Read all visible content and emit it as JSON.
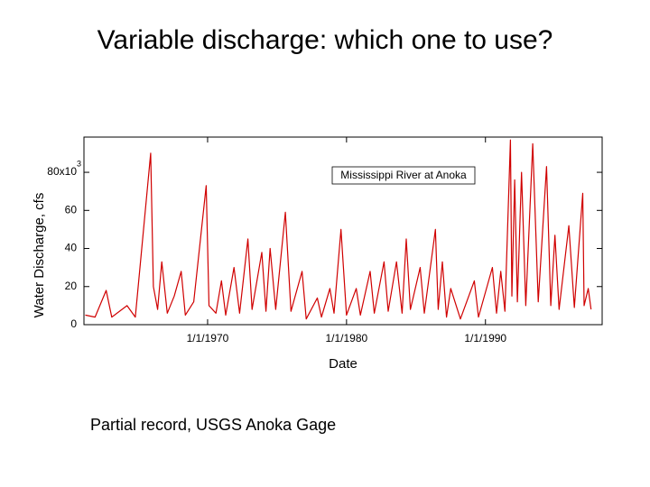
{
  "chart_data": {
    "type": "line",
    "title": "Variable discharge: which one to use?",
    "caption": "Partial record, USGS Anoka Gage",
    "annotation": "Mississippi River at Anoka",
    "xlabel": "Date",
    "ylabel": "Water Discharge, cfs",
    "ytick_exponent": "3",
    "color": "#d00000",
    "xlim": [
      1961.1,
      1998.4
    ],
    "ylim": [
      0,
      98.5
    ],
    "xticks": [
      {
        "value": 1970,
        "label": "1/1/1970"
      },
      {
        "value": 1980,
        "label": "1/1/1980"
      },
      {
        "value": 1990,
        "label": "1/1/1990"
      }
    ],
    "yticks": [
      0,
      20,
      40,
      60,
      {
        "value": 80,
        "label": "80x10"
      }
    ],
    "x": [
      1961.2,
      1961.9,
      1962.7,
      1963.1,
      1964.2,
      1964.8,
      1965.9,
      1966.1,
      1966.4,
      1966.7,
      1967.1,
      1967.6,
      1968.1,
      1968.4,
      1969.0,
      1969.9,
      1970.1,
      1970.6,
      1971.0,
      1971.3,
      1971.9,
      1972.3,
      1972.9,
      1973.2,
      1973.9,
      1974.2,
      1974.5,
      1974.9,
      1975.6,
      1976.0,
      1976.8,
      1977.1,
      1977.9,
      1978.2,
      1978.8,
      1979.1,
      1979.6,
      1980.0,
      1980.7,
      1981.0,
      1981.7,
      1982.0,
      1982.7,
      1983.0,
      1983.6,
      1984.0,
      1984.3,
      1984.6,
      1985.3,
      1985.6,
      1986.4,
      1986.6,
      1986.9,
      1987.2,
      1987.5,
      1988.2,
      1989.2,
      1989.5,
      1990.5,
      1990.8,
      1991.1,
      1991.4,
      1991.8,
      1991.9,
      1992.1,
      1992.3,
      1992.6,
      1992.9,
      1993.4,
      1993.8,
      1994.4,
      1994.7,
      1995.0,
      1995.3,
      1996.0,
      1996.4,
      1997.0,
      1997.1,
      1997.4,
      1997.6
    ],
    "values": [
      5,
      4,
      18,
      4,
      10,
      4,
      90,
      20,
      8,
      33,
      6,
      15,
      28,
      5,
      12,
      73,
      10,
      6,
      23,
      5,
      30,
      6,
      45,
      8,
      38,
      7,
      40,
      8,
      59,
      7,
      28,
      3,
      14,
      4,
      19,
      6,
      50,
      5,
      19,
      5,
      28,
      6,
      33,
      7,
      33,
      6,
      45,
      8,
      30,
      6,
      50,
      8,
      33,
      4,
      19,
      3,
      23,
      4,
      30,
      6,
      28,
      7,
      97,
      15,
      76,
      12,
      80,
      10,
      95,
      12,
      83,
      10,
      47,
      8,
      52,
      9,
      69,
      10,
      19,
      8
    ]
  }
}
